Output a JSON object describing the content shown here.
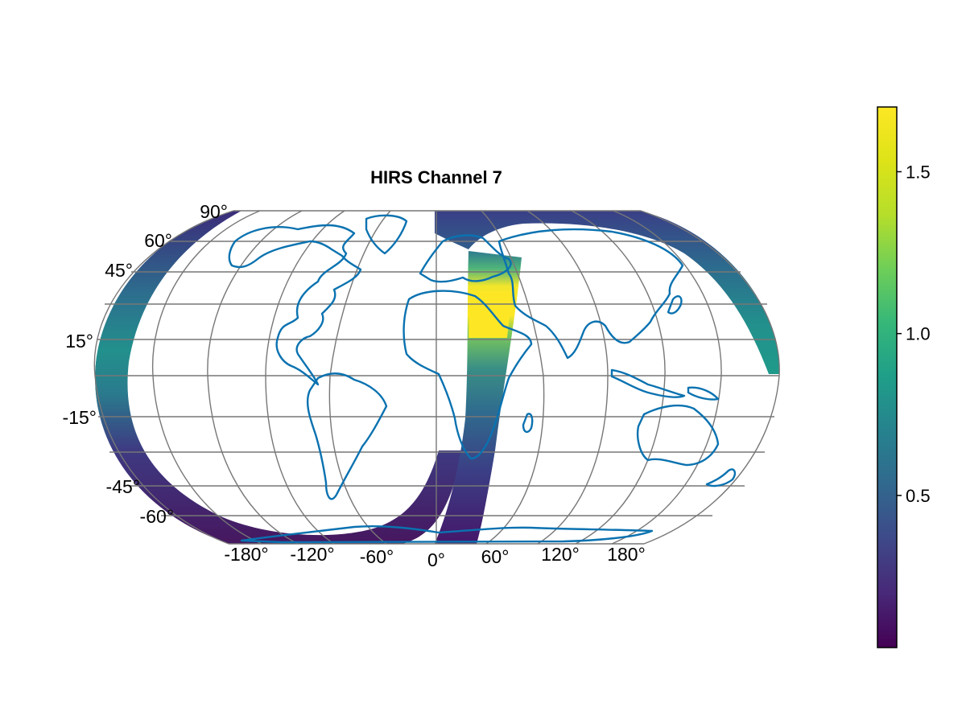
{
  "chart_data": {
    "type": "heatmap",
    "title": "HIRS Channel 7",
    "projection": "Equal Earth",
    "lat_tick_labels": [
      "90°",
      "60°",
      "45°",
      "15°",
      "-15°",
      "-45°",
      "-60°"
    ],
    "lon_tick_labels": [
      "-180°",
      "-120°",
      "-60°",
      "0°",
      "60°",
      "120°",
      "180°"
    ],
    "grid": true,
    "colormap": "viridis",
    "colorbar": {
      "range": [
        0.03,
        1.7
      ],
      "tick_labels": [
        "0.5",
        "1.0",
        "1.5"
      ],
      "ticks": [
        0.5,
        1.0,
        1.5
      ],
      "placement": "right"
    },
    "swath_description_values": {
      "western_arc_low": 0.15,
      "western_arc_tropics": 0.9,
      "eastern_arc_high_latitudes": 0.5,
      "eastern_arc_tropics": 0.95,
      "central_swath_south": 0.3,
      "central_swath_mid": 0.8,
      "middle_east_max": 1.7
    },
    "colors": {
      "coastline": "#0a72b0",
      "gridlines": "#777777"
    }
  }
}
